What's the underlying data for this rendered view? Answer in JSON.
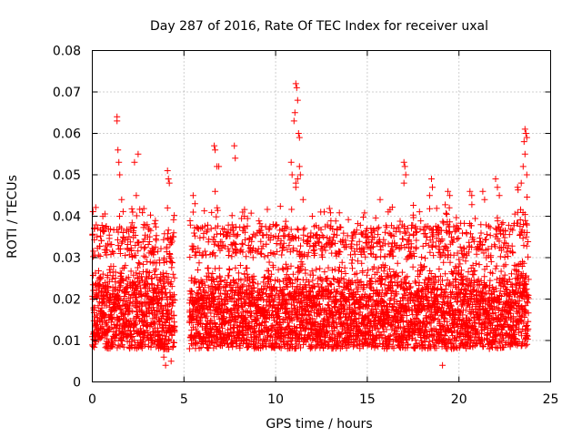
{
  "chart_data": {
    "type": "scatter",
    "title": "Day 287 of 2016, Rate Of TEC Index for receiver uxal",
    "xlabel": "GPS time / hours",
    "ylabel": "ROTI / TECUs",
    "xlim": [
      0,
      25
    ],
    "ylim": [
      0,
      0.08
    ],
    "x_ticks": [
      0,
      5,
      10,
      15,
      20,
      25
    ],
    "x_tick_labels": [
      "0",
      "5",
      "10",
      "15",
      "20",
      "25"
    ],
    "y_ticks": [
      0,
      0.01,
      0.02,
      0.03,
      0.04,
      0.05,
      0.06,
      0.07,
      0.08
    ],
    "y_tick_labels": [
      "0",
      "0.01",
      "0.02",
      "0.03",
      "0.04",
      "0.05",
      "0.06",
      "0.07",
      "0.08"
    ],
    "grid": true,
    "marker": "+",
    "series": [
      {
        "name": "ROTI",
        "color": "#ff0000",
        "gap_hours": [
          4.5,
          5.3
        ],
        "typical_band": [
          0.008,
          0.03
        ],
        "points": [
          [
            1.35,
            0.064
          ],
          [
            1.35,
            0.063
          ],
          [
            1.4,
            0.056
          ],
          [
            1.45,
            0.053
          ],
          [
            1.5,
            0.05
          ],
          [
            1.6,
            0.044
          ],
          [
            2.3,
            0.053
          ],
          [
            2.5,
            0.055
          ],
          [
            2.4,
            0.045
          ],
          [
            2.2,
            0.041
          ],
          [
            4.1,
            0.051
          ],
          [
            4.15,
            0.049
          ],
          [
            4.2,
            0.048
          ],
          [
            4.1,
            0.042
          ],
          [
            4.3,
            0.005
          ],
          [
            4.0,
            0.004
          ],
          [
            3.9,
            0.006
          ],
          [
            5.5,
            0.045
          ],
          [
            5.6,
            0.043
          ],
          [
            5.5,
            0.041
          ],
          [
            6.65,
            0.057
          ],
          [
            6.7,
            0.056
          ],
          [
            6.8,
            0.052
          ],
          [
            6.9,
            0.052
          ],
          [
            6.7,
            0.046
          ],
          [
            7.75,
            0.057
          ],
          [
            7.8,
            0.054
          ],
          [
            8.2,
            0.041
          ],
          [
            8.3,
            0.04
          ],
          [
            11.1,
            0.072
          ],
          [
            11.15,
            0.071
          ],
          [
            11.2,
            0.068
          ],
          [
            11.05,
            0.065
          ],
          [
            11.0,
            0.063
          ],
          [
            11.25,
            0.06
          ],
          [
            11.3,
            0.059
          ],
          [
            10.85,
            0.053
          ],
          [
            10.9,
            0.05
          ],
          [
            11.1,
            0.048
          ],
          [
            11.2,
            0.049
          ],
          [
            11.3,
            0.052
          ],
          [
            11.35,
            0.05
          ],
          [
            11.1,
            0.047
          ],
          [
            12.0,
            0.04
          ],
          [
            11.5,
            0.044
          ],
          [
            15.7,
            0.044
          ],
          [
            17.0,
            0.053
          ],
          [
            17.05,
            0.052
          ],
          [
            17.1,
            0.05
          ],
          [
            17.0,
            0.048
          ],
          [
            18.5,
            0.049
          ],
          [
            18.55,
            0.047
          ],
          [
            18.4,
            0.045
          ],
          [
            19.1,
            0.004
          ],
          [
            19.4,
            0.046
          ],
          [
            19.5,
            0.045
          ],
          [
            20.6,
            0.046
          ],
          [
            20.7,
            0.045
          ],
          [
            21.3,
            0.046
          ],
          [
            21.4,
            0.044
          ],
          [
            22.0,
            0.049
          ],
          [
            22.1,
            0.047
          ],
          [
            22.2,
            0.045
          ],
          [
            23.2,
            0.047
          ],
          [
            23.4,
            0.048
          ],
          [
            23.6,
            0.061
          ],
          [
            23.65,
            0.06
          ],
          [
            23.7,
            0.059
          ],
          [
            23.55,
            0.058
          ],
          [
            23.6,
            0.055
          ],
          [
            23.5,
            0.052
          ],
          [
            23.7,
            0.05
          ]
        ]
      }
    ]
  }
}
